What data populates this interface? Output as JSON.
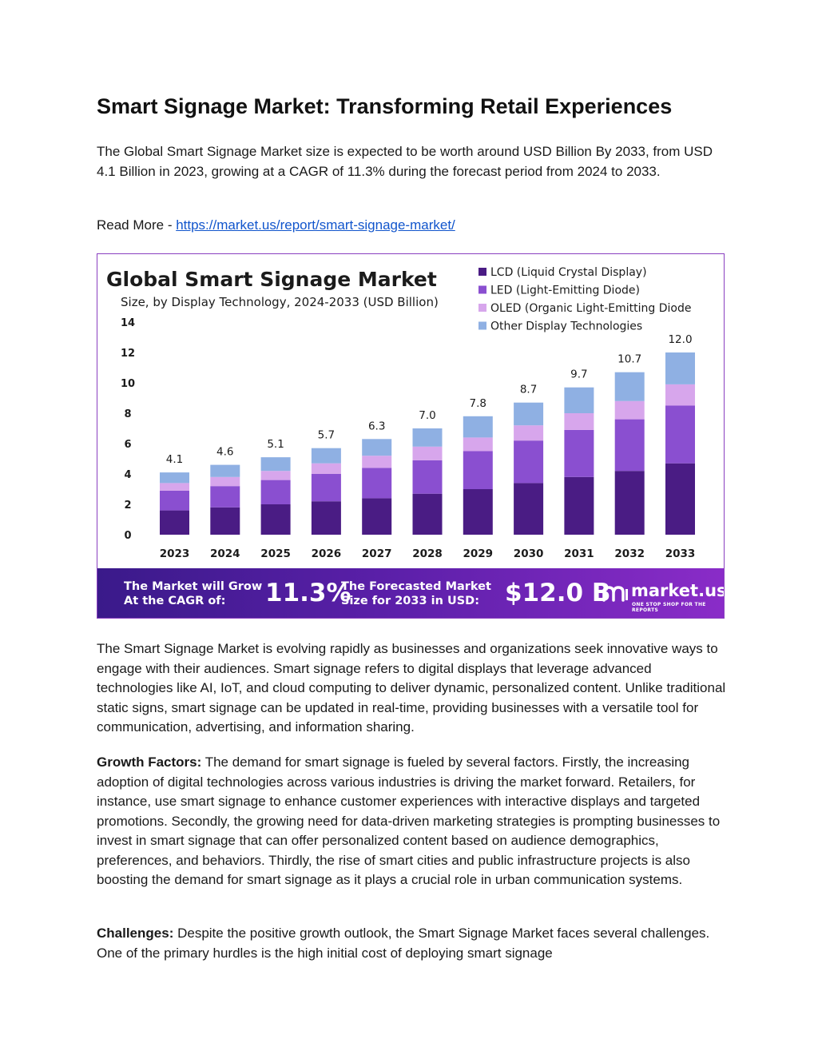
{
  "document": {
    "title": "Smart Signage Market: Transforming Retail Experiences",
    "intro": "The Global Smart Signage Market size is expected to be worth around USD Billion By 2033, from USD 4.1 Billion in 2023, growing at a CAGR of 11.3% during the forecast period from 2024 to 2033.",
    "read_more_label": "Read More - ",
    "read_more_url": "https://market.us/report/smart-signage-market/",
    "para1": "The Smart Signage Market is evolving rapidly as businesses and organizations seek innovative ways to engage with their audiences. Smart signage refers to digital displays that leverage advanced technologies like AI, IoT, and cloud computing to deliver dynamic, personalized content. Unlike traditional static signs, smart signage can be updated in real-time, providing businesses with a versatile tool for communication, advertising, and information sharing.",
    "growth_label": "Growth Factors:",
    "growth_text": " The demand for smart signage is fueled by several factors. Firstly, the increasing adoption of digital technologies across various industries is driving the market forward. Retailers, for instance, use smart signage to enhance customer experiences with interactive displays and targeted promotions. Secondly, the growing need for data-driven marketing strategies is prompting businesses to invest in smart signage that can offer personalized content based on audience demographics, preferences, and behaviors. Thirdly, the rise of smart cities and public infrastructure projects is also boosting the demand for smart signage as it plays a crucial role in urban communication systems.",
    "challenges_label": "Challenges:",
    "challenges_text": " Despite the positive growth outlook, the Smart Signage Market faces several challenges. One of the primary hurdles is the high initial cost of deploying smart signage"
  },
  "banner": {
    "cagr_label_1": "The Market will Grow",
    "cagr_label_2": "At the CAGR of:",
    "cagr_value": "11.3%",
    "size_label_1": "The Forecasted Market",
    "size_label_2": "Size for 2033 in USD:",
    "size_value": "$12.0 B",
    "logo_text": "market.us",
    "logo_tagline": "ONE STOP SHOP FOR THE REPORTS"
  },
  "chart_data": {
    "type": "bar",
    "stacked": true,
    "title": "Global Smart Signage Market",
    "subtitle": "Size, by Display Technology, 2024-2033 (USD Billion)",
    "categories": [
      "2023",
      "2024",
      "2025",
      "2026",
      "2027",
      "2028",
      "2029",
      "2030",
      "2031",
      "2032",
      "2033"
    ],
    "totals": [
      4.1,
      4.6,
      5.1,
      5.7,
      6.3,
      7.0,
      7.8,
      8.7,
      9.7,
      10.7,
      12.0
    ],
    "series": [
      {
        "name": "LCD (Liquid Crystal Display)",
        "color": "#4a1c84",
        "values": [
          1.6,
          1.8,
          2.0,
          2.2,
          2.4,
          2.7,
          3.0,
          3.4,
          3.8,
          4.2,
          4.7
        ]
      },
      {
        "name": "LED (Light-Emitting Diode)",
        "color": "#8a4fd0",
        "values": [
          1.3,
          1.4,
          1.6,
          1.8,
          2.0,
          2.2,
          2.5,
          2.8,
          3.1,
          3.4,
          3.8
        ]
      },
      {
        "name": "OLED (Organic Light-Emitting Diode",
        "color": "#d7a6ec",
        "values": [
          0.5,
          0.6,
          0.6,
          0.7,
          0.8,
          0.9,
          0.9,
          1.0,
          1.1,
          1.2,
          1.4
        ]
      },
      {
        "name": "Other Display Technologies",
        "color": "#8fb0e3",
        "values": [
          0.7,
          0.8,
          0.9,
          1.0,
          1.1,
          1.2,
          1.4,
          1.5,
          1.7,
          1.9,
          2.1
        ]
      }
    ],
    "yticks": [
      "0",
      "2",
      "4",
      "6",
      "8",
      "10",
      "12",
      "14"
    ],
    "ylim": [
      0,
      14
    ],
    "grid": false,
    "legend_position": "top-right"
  }
}
